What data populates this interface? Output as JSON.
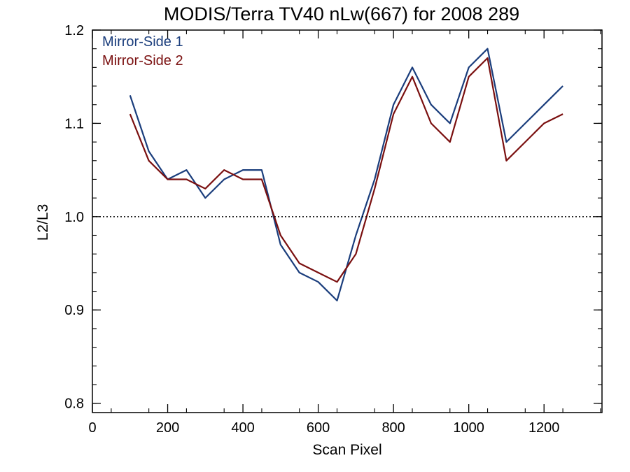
{
  "chart_data": {
    "type": "line",
    "title": "MODIS/Terra TV40 nLw(667) for 2008 289",
    "xlabel": "Scan Pixel",
    "ylabel": "L2/L3",
    "xlim": [
      0,
      1354
    ],
    "ylim": [
      0.79,
      1.2
    ],
    "xticks": [
      "0",
      "200",
      "400",
      "600",
      "800",
      "1000",
      "1200"
    ],
    "yticks": [
      "0.8",
      "0.9",
      "1.0",
      "1.1",
      "1.2"
    ],
    "reference_line": {
      "y": 1.0,
      "style": "dotted"
    },
    "legend_position": "top-left",
    "colors": {
      "Mirror-Side 1": "#1a3d7c",
      "Mirror-Side 2": "#7a0f0f"
    },
    "series": [
      {
        "name": "Mirror-Side 1",
        "x": [
          100,
          150,
          200,
          250,
          300,
          350,
          400,
          450,
          500,
          550,
          600,
          650,
          700,
          750,
          800,
          850,
          900,
          950,
          1000,
          1050,
          1100,
          1150,
          1200,
          1250
        ],
        "values": [
          1.13,
          1.07,
          1.04,
          1.05,
          1.02,
          1.04,
          1.05,
          1.05,
          0.97,
          0.94,
          0.93,
          0.91,
          0.98,
          1.04,
          1.12,
          1.16,
          1.12,
          1.1,
          1.16,
          1.18,
          1.08,
          1.1,
          1.12,
          1.14
        ]
      },
      {
        "name": "Mirror-Side 2",
        "x": [
          100,
          150,
          200,
          250,
          300,
          350,
          400,
          450,
          500,
          550,
          600,
          650,
          700,
          750,
          800,
          850,
          900,
          950,
          1000,
          1050,
          1100,
          1150,
          1200,
          1250
        ],
        "values": [
          1.11,
          1.06,
          1.04,
          1.04,
          1.03,
          1.05,
          1.04,
          1.04,
          0.98,
          0.95,
          0.94,
          0.93,
          0.96,
          1.03,
          1.11,
          1.15,
          1.1,
          1.08,
          1.15,
          1.17,
          1.06,
          1.08,
          1.1,
          1.11
        ]
      }
    ]
  }
}
